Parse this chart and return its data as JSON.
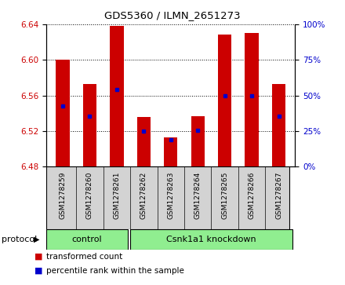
{
  "title": "GDS5360 / ILMN_2651273",
  "samples": [
    "GSM1278259",
    "GSM1278260",
    "GSM1278261",
    "GSM1278262",
    "GSM1278263",
    "GSM1278264",
    "GSM1278265",
    "GSM1278266",
    "GSM1278267"
  ],
  "bar_tops": [
    6.6,
    6.573,
    6.638,
    6.536,
    6.513,
    6.537,
    6.628,
    6.63,
    6.573
  ],
  "bar_bottom": 6.48,
  "percentile_values": [
    6.548,
    6.537,
    6.567,
    6.52,
    6.51,
    6.521,
    6.56,
    6.56,
    6.537
  ],
  "ylim": [
    6.48,
    6.64
  ],
  "yticks_left": [
    6.48,
    6.52,
    6.56,
    6.6,
    6.64
  ],
  "yticks_right": [
    0,
    25,
    50,
    75,
    100
  ],
  "yticks_right_vals": [
    6.48,
    6.52,
    6.56,
    6.6,
    6.64
  ],
  "bar_color": "#cc0000",
  "percentile_color": "#0000cc",
  "bar_width": 0.5,
  "tick_label_color_left": "#cc0000",
  "tick_label_color_right": "#0000cc",
  "protocol_label": "protocol",
  "control_label": "control",
  "control_range": [
    0,
    3
  ],
  "knockdown_label": "Csnk1a1 knockdown",
  "knockdown_range": [
    3,
    9
  ],
  "group_color": "#90ee90",
  "sample_box_color": "#d3d3d3",
  "legend_items": [
    {
      "label": "transformed count",
      "color": "#cc0000"
    },
    {
      "label": "percentile rank within the sample",
      "color": "#0000cc"
    }
  ]
}
